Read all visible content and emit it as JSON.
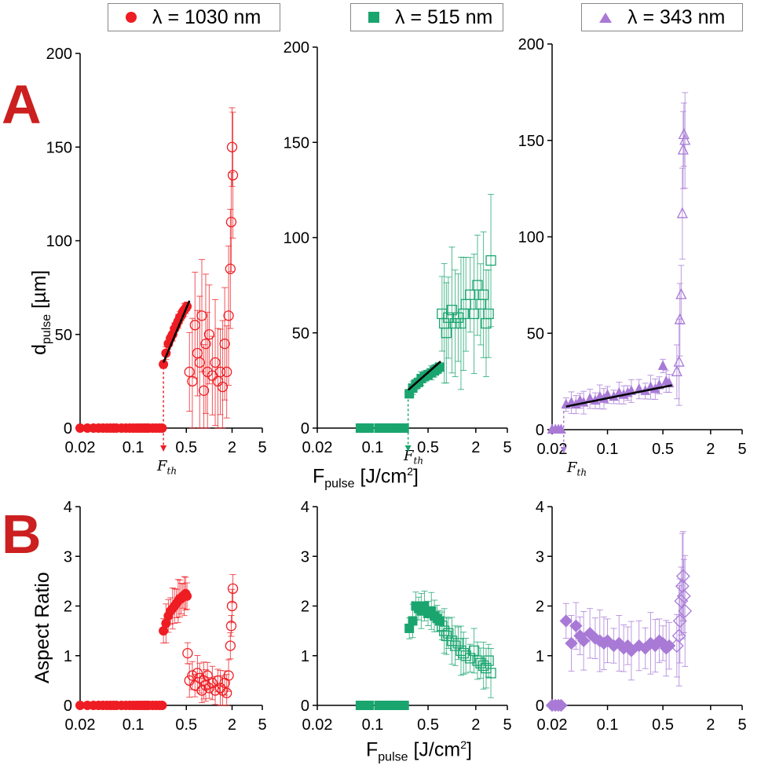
{
  "legend": [
    {
      "label": "λ =  1030 nm",
      "color": "#ee1d23",
      "marker": "circle"
    },
    {
      "label": "λ =  515 nm",
      "color": "#1aa56f",
      "marker": "square"
    },
    {
      "label": "λ =  343 nm",
      "color": "#a87ad6",
      "marker": "triangle"
    }
  ],
  "panel_labels": {
    "a": "A",
    "b": "B"
  },
  "panel_color": "#cc1f1f",
  "axes": {
    "ylabel_a_main": "d",
    "ylabel_a_sub": "pulse",
    "ylabel_a_unit": " [µm]",
    "ylabel_b": "Aspect Ratio",
    "xlabel_main": "F",
    "xlabel_sub": "pulse",
    "xlabel_unit_pre": " [J/cm",
    "xlabel_unit_sup": "2",
    "xlabel_unit_post": "]"
  },
  "fth_label": {
    "main": "F",
    "sub": "th"
  },
  "chart_data": [
    {
      "type": "scatter",
      "row": "A",
      "title": "λ = 1030 nm",
      "xscale": "log",
      "xlim": [
        0.02,
        5
      ],
      "ylim": [
        0,
        200
      ],
      "xticks": [
        "0.02",
        "0.1",
        "0.5",
        "2",
        "5"
      ],
      "yticks": [
        "0",
        "50",
        "100",
        "150",
        "200"
      ],
      "xlabel": "",
      "ylabel": "dpulse [µm]",
      "threshold": 0.25,
      "fit_line": [
        [
          0.25,
          35
        ],
        [
          0.55,
          68
        ]
      ],
      "series": [
        {
          "name": "zero",
          "fill": "filled",
          "x": [
            0.02,
            0.025,
            0.03,
            0.035,
            0.04,
            0.045,
            0.05,
            0.055,
            0.06,
            0.07,
            0.08,
            0.09,
            0.1,
            0.11,
            0.12,
            0.13,
            0.14,
            0.15,
            0.16,
            0.18,
            0.2,
            0.22,
            0.24
          ],
          "y": [
            0,
            0,
            0,
            0,
            0,
            0,
            0,
            0,
            0,
            0,
            0,
            0,
            0,
            0,
            0,
            0,
            0,
            0,
            0,
            0,
            0,
            0,
            0
          ]
        },
        {
          "name": "filled",
          "fill": "filled",
          "x": [
            0.25,
            0.27,
            0.29,
            0.31,
            0.33,
            0.35,
            0.37,
            0.39,
            0.41,
            0.43,
            0.45,
            0.47,
            0.49,
            0.51
          ],
          "y": [
            34,
            40,
            45,
            48,
            50,
            53,
            55,
            57,
            59,
            60,
            62,
            63,
            64,
            65
          ],
          "err": 3
        },
        {
          "name": "open",
          "fill": "open",
          "x": [
            0.55,
            0.6,
            0.65,
            0.7,
            0.75,
            0.8,
            0.85,
            0.9,
            0.95,
            1.0,
            1.1,
            1.2,
            1.3,
            1.4,
            1.5,
            1.6,
            1.7,
            1.8,
            1.9,
            1.95,
            2.0,
            2.05
          ],
          "y": [
            30,
            25,
            55,
            40,
            35,
            60,
            20,
            45,
            30,
            50,
            28,
            35,
            25,
            30,
            22,
            45,
            30,
            60,
            85,
            110,
            150,
            135
          ],
          "err": 30
        }
      ]
    },
    {
      "type": "scatter",
      "row": "A",
      "title": "λ = 515 nm",
      "xscale": "log",
      "xlim": [
        0.02,
        5
      ],
      "ylim": [
        0,
        200
      ],
      "xticks": [
        "0.02",
        "0.1",
        "0.5",
        "2",
        "5"
      ],
      "yticks": [
        "0",
        "50",
        "100",
        "150",
        "200"
      ],
      "xlabel": "Fpulse [J/cm2]",
      "ylabel": "",
      "threshold": 0.28,
      "fit_line": [
        [
          0.28,
          20
        ],
        [
          0.72,
          35
        ]
      ],
      "series": [
        {
          "name": "zero",
          "fill": "filled",
          "x": [
            0.07,
            0.09,
            0.12,
            0.15,
            0.18,
            0.21,
            0.25
          ],
          "y": [
            0,
            0,
            0,
            0,
            0,
            0,
            0
          ]
        },
        {
          "name": "filled",
          "fill": "filled",
          "x": [
            0.29,
            0.32,
            0.35,
            0.38,
            0.41,
            0.45,
            0.5,
            0.55,
            0.6,
            0.65,
            0.7
          ],
          "y": [
            18,
            21,
            23,
            24,
            26,
            27,
            28,
            29,
            30,
            31,
            32
          ],
          "err": 3
        },
        {
          "name": "open",
          "fill": "open",
          "x": [
            0.75,
            0.8,
            0.85,
            0.9,
            1.0,
            1.1,
            1.2,
            1.3,
            1.4,
            1.5,
            1.7,
            1.9,
            2.1,
            2.3,
            2.5,
            2.7,
            2.9,
            3.1
          ],
          "y": [
            60,
            55,
            50,
            58,
            62,
            55,
            58,
            55,
            60,
            65,
            70,
            60,
            75,
            65,
            70,
            55,
            60,
            88
          ],
          "err": 28
        }
      ]
    },
    {
      "type": "scatter",
      "row": "A",
      "title": "λ = 343 nm",
      "xscale": "log",
      "xlim": [
        0.02,
        5
      ],
      "ylim": [
        0,
        200
      ],
      "xticks": [
        "0.02",
        "0.1",
        "0.5",
        "2",
        "5"
      ],
      "yticks": [
        "0",
        "50",
        "100",
        "150",
        "200"
      ],
      "xlabel": "",
      "ylabel": "",
      "threshold": 0.028,
      "fit_line": [
        [
          0.03,
          12
        ],
        [
          0.65,
          23
        ]
      ],
      "series": [
        {
          "name": "zero",
          "fill": "filled",
          "x": [
            0.02,
            0.022,
            0.024,
            0.026
          ],
          "y": [
            0,
            0,
            0,
            0
          ]
        },
        {
          "name": "filled",
          "fill": "filled",
          "x": [
            0.03,
            0.035,
            0.04,
            0.045,
            0.05,
            0.06,
            0.07,
            0.08,
            0.09,
            0.1,
            0.12,
            0.14,
            0.16,
            0.18,
            0.2,
            0.25,
            0.3,
            0.35,
            0.4,
            0.45,
            0.5,
            0.55,
            0.6
          ],
          "y": [
            13,
            14,
            13,
            15,
            14,
            16,
            15,
            17,
            16,
            18,
            17,
            19,
            18,
            19,
            20,
            21,
            20,
            22,
            21,
            23,
            33,
            25,
            24
          ],
          "err": 5
        },
        {
          "name": "open",
          "fill": "open",
          "x": [
            0.75,
            0.8,
            0.82,
            0.85,
            0.88,
            0.9,
            0.92,
            0.95
          ],
          "y": [
            30,
            35,
            57,
            70,
            112,
            145,
            153,
            150
          ],
          "err": 20
        }
      ]
    },
    {
      "type": "scatter",
      "row": "B",
      "title": "λ = 1030 nm",
      "xscale": "log",
      "xlim": [
        0.02,
        5
      ],
      "ylim": [
        0,
        4
      ],
      "xticks": [
        "0.02",
        "0.1",
        "0.5",
        "2",
        "5"
      ],
      "yticks": [
        "0",
        "1",
        "2",
        "3",
        "4"
      ],
      "xlabel": "",
      "ylabel": "Aspect Ratio",
      "series": [
        {
          "name": "zero",
          "fill": "filled",
          "x": [
            0.02,
            0.025,
            0.03,
            0.035,
            0.04,
            0.045,
            0.05,
            0.055,
            0.06,
            0.07,
            0.08,
            0.09,
            0.1,
            0.11,
            0.12,
            0.13,
            0.14,
            0.15,
            0.16,
            0.18,
            0.2,
            0.22,
            0.24
          ],
          "y": [
            0,
            0,
            0,
            0,
            0,
            0,
            0,
            0,
            0,
            0,
            0,
            0,
            0,
            0,
            0,
            0,
            0,
            0,
            0,
            0,
            0,
            0,
            0
          ]
        },
        {
          "name": "filled",
          "fill": "filled",
          "x": [
            0.25,
            0.27,
            0.29,
            0.31,
            0.33,
            0.35,
            0.37,
            0.39,
            0.41,
            0.43,
            0.45,
            0.47,
            0.49,
            0.51
          ],
          "y": [
            1.5,
            1.65,
            1.8,
            1.9,
            1.95,
            2.0,
            2.05,
            2.1,
            2.15,
            2.15,
            2.2,
            2.2,
            2.25,
            2.2
          ],
          "err": 0.35
        },
        {
          "name": "open",
          "fill": "open",
          "x": [
            0.52,
            0.55,
            0.6,
            0.65,
            0.7,
            0.75,
            0.8,
            0.85,
            0.9,
            0.95,
            1.0,
            1.1,
            1.2,
            1.3,
            1.4,
            1.5,
            1.6,
            1.7,
            1.8,
            1.9,
            1.95,
            2.0,
            2.05
          ],
          "y": [
            1.05,
            0.5,
            0.6,
            0.4,
            0.65,
            0.55,
            0.3,
            0.5,
            0.4,
            0.6,
            0.35,
            0.45,
            0.3,
            0.5,
            0.35,
            0.3,
            0.45,
            0.25,
            0.6,
            1.2,
            1.6,
            2.0,
            2.35
          ],
          "err": 0.3
        }
      ]
    },
    {
      "type": "scatter",
      "row": "B",
      "title": "λ = 515 nm",
      "xscale": "log",
      "xlim": [
        0.02,
        5
      ],
      "ylim": [
        0,
        4
      ],
      "xticks": [
        "0.02",
        "0.1",
        "0.5",
        "2",
        "5"
      ],
      "yticks": [
        "0",
        "1",
        "2",
        "3",
        "4"
      ],
      "xlabel": "Fpulse [J/cm2]",
      "ylabel": "",
      "series": [
        {
          "name": "zero",
          "fill": "filled",
          "x": [
            0.07,
            0.09,
            0.12,
            0.15,
            0.18,
            0.21,
            0.25
          ],
          "y": [
            0,
            0,
            0,
            0,
            0,
            0,
            0
          ]
        },
        {
          "name": "filled",
          "fill": "filled",
          "x": [
            0.29,
            0.32,
            0.35,
            0.38,
            0.41,
            0.45,
            0.5,
            0.55,
            0.6,
            0.65,
            0.7
          ],
          "y": [
            1.55,
            1.7,
            2.0,
            1.95,
            1.9,
            2.0,
            1.85,
            1.9,
            1.8,
            1.75,
            1.7
          ],
          "err": 0.3
        },
        {
          "name": "open",
          "fill": "open",
          "x": [
            0.75,
            0.8,
            0.85,
            0.9,
            1.0,
            1.1,
            1.2,
            1.3,
            1.4,
            1.5,
            1.7,
            1.9,
            2.1,
            2.3,
            2.5,
            2.7,
            2.9,
            3.1
          ],
          "y": [
            1.6,
            1.5,
            1.4,
            1.45,
            1.3,
            1.2,
            1.25,
            1.1,
            1.05,
            1.0,
            0.95,
            1.1,
            0.9,
            0.85,
            0.8,
            0.75,
            0.9,
            0.65
          ],
          "err": 0.4
        }
      ]
    },
    {
      "type": "scatter",
      "row": "B",
      "title": "λ = 343 nm",
      "xscale": "log",
      "xlim": [
        0.02,
        5
      ],
      "ylim": [
        0,
        4
      ],
      "xticks": [
        "0.02",
        "0.1",
        "0.5",
        "2",
        "5"
      ],
      "yticks": [
        "0",
        "1",
        "2",
        "3",
        "4"
      ],
      "xlabel": "",
      "ylabel": "",
      "series": [
        {
          "name": "zero",
          "fill": "filled",
          "x": [
            0.02,
            0.022,
            0.024,
            0.026
          ],
          "y": [
            0,
            0,
            0,
            0
          ]
        },
        {
          "name": "filled",
          "fill": "filled",
          "x": [
            0.03,
            0.035,
            0.04,
            0.045,
            0.05,
            0.06,
            0.07,
            0.08,
            0.09,
            0.1,
            0.12,
            0.14,
            0.16,
            0.18,
            0.2,
            0.25,
            0.3,
            0.35,
            0.4,
            0.45,
            0.5,
            0.55,
            0.6
          ],
          "y": [
            1.7,
            1.25,
            1.6,
            1.4,
            1.3,
            1.45,
            1.35,
            1.3,
            1.25,
            1.3,
            1.2,
            1.25,
            1.15,
            1.2,
            1.1,
            1.2,
            1.15,
            1.25,
            1.2,
            1.3,
            1.25,
            1.15,
            1.2
          ],
          "err": 0.5
        },
        {
          "name": "open",
          "fill": "open",
          "x": [
            0.75,
            0.8,
            0.82,
            0.85,
            0.88,
            0.9,
            0.92,
            0.95
          ],
          "y": [
            1.2,
            1.4,
            1.7,
            2.1,
            2.4,
            2.6,
            2.2,
            1.9
          ],
          "err": 0.9
        }
      ]
    }
  ]
}
